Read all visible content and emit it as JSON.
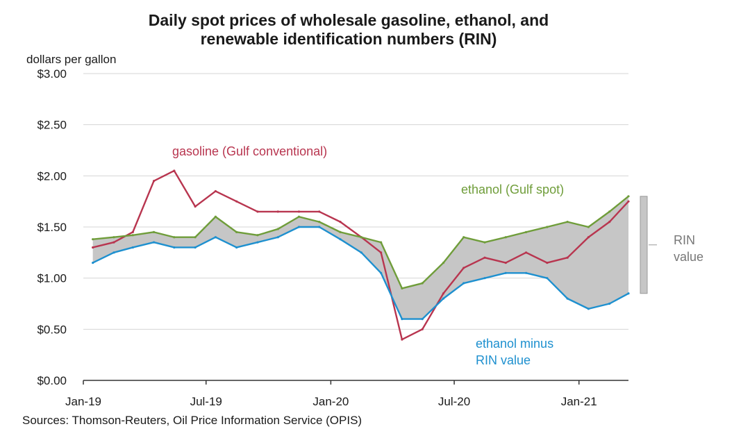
{
  "title_line1": "Daily spot prices of wholesale gasoline, ethanol, and",
  "title_line2": "renewable identification numbers (RIN)",
  "units": "dollars per gallon",
  "source": "Sources: Thomson-Reuters, Oil Price Information Service (OPIS)",
  "chart_data": {
    "type": "line",
    "title": "Daily spot prices of wholesale gasoline, ethanol, and renewable identification numbers (RIN)",
    "ylabel": "dollars per gallon",
    "xlabel": "",
    "ylim": [
      0,
      3
    ],
    "xlim": [
      "2019-01-01",
      "2021-03-15"
    ],
    "grid": true,
    "yticks": [
      "$0.00",
      "$0.50",
      "$1.00",
      "$1.50",
      "$2.00",
      "$2.50",
      "$3.00"
    ],
    "xticks": [
      "Jan-19",
      "Jul-19",
      "Jan-20",
      "Jul-20",
      "Jan-21"
    ],
    "x": [
      "2019-01",
      "2019-02",
      "2019-03",
      "2019-04",
      "2019-05",
      "2019-06",
      "2019-07",
      "2019-08",
      "2019-09",
      "2019-10",
      "2019-11",
      "2019-12",
      "2020-01",
      "2020-02",
      "2020-03",
      "2020-04",
      "2020-05",
      "2020-06",
      "2020-07",
      "2020-08",
      "2020-09",
      "2020-10",
      "2020-11",
      "2020-12",
      "2021-01",
      "2021-02",
      "2021-03"
    ],
    "series": [
      {
        "name": "gasoline (Gulf conventional)",
        "color": "#b8354f",
        "values": [
          1.3,
          1.35,
          1.45,
          1.95,
          2.05,
          1.7,
          1.85,
          1.75,
          1.65,
          1.65,
          1.65,
          1.65,
          1.55,
          1.4,
          1.25,
          0.4,
          0.5,
          0.85,
          1.1,
          1.2,
          1.15,
          1.25,
          1.15,
          1.2,
          1.4,
          1.55,
          1.75
        ]
      },
      {
        "name": "ethanol (Gulf spot)",
        "color": "#6f9d3a",
        "values": [
          1.38,
          1.4,
          1.42,
          1.45,
          1.4,
          1.4,
          1.6,
          1.45,
          1.42,
          1.48,
          1.6,
          1.55,
          1.45,
          1.4,
          1.35,
          0.9,
          0.95,
          1.15,
          1.4,
          1.35,
          1.4,
          1.45,
          1.5,
          1.55,
          1.5,
          1.65,
          1.8
        ]
      },
      {
        "name": "ethanol minus RIN value",
        "color": "#1e90cf",
        "values": [
          1.15,
          1.25,
          1.3,
          1.35,
          1.3,
          1.3,
          1.4,
          1.3,
          1.35,
          1.4,
          1.5,
          1.5,
          1.38,
          1.25,
          1.05,
          0.6,
          0.6,
          0.8,
          0.95,
          1.0,
          1.05,
          1.05,
          1.0,
          0.8,
          0.7,
          0.75,
          0.85
        ]
      }
    ],
    "annotations": [
      {
        "text": "gasoline (Gulf conventional)"
      },
      {
        "text": "ethanol (Gulf spot)"
      },
      {
        "text": "ethanol minus"
      },
      {
        "text": "RIN value"
      },
      {
        "text": "RIN"
      },
      {
        "text": "value"
      }
    ]
  }
}
